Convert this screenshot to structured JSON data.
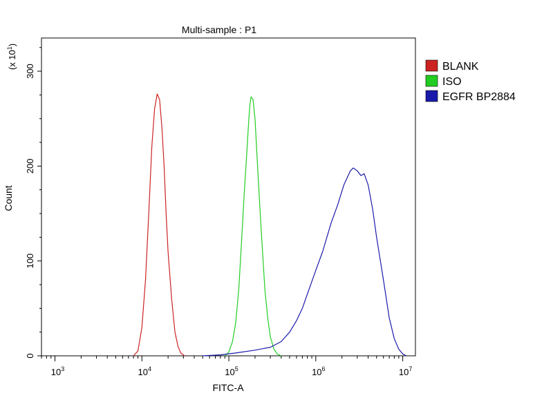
{
  "chart_data": {
    "type": "line",
    "title": "Multi-sample : P1",
    "xlabel": "FITC-A",
    "ylabel": "Count",
    "y_multiplier": "(x 10",
    "y_multiplier_exp": "1",
    "y_multiplier_close": ")",
    "x_scale": "log",
    "xlim": [
      700,
      14000000
    ],
    "ylim": [
      0,
      33.5
    ],
    "x_ticks": [
      {
        "value": 1000,
        "base": "10",
        "exp": "3"
      },
      {
        "value": 10000,
        "base": "10",
        "exp": "4"
      },
      {
        "value": 100000,
        "base": "10",
        "exp": "5"
      },
      {
        "value": 1000000,
        "base": "10",
        "exp": "6"
      },
      {
        "value": 10000000,
        "base": "10",
        "exp": "7"
      }
    ],
    "y_ticks": [
      {
        "value": 0,
        "label": "0"
      },
      {
        "value": 10,
        "label": "100"
      },
      {
        "value": 20,
        "label": "200"
      },
      {
        "value": 30,
        "label": "300"
      }
    ],
    "grid": false,
    "legend_position": "right",
    "series": [
      {
        "name": "BLANK",
        "color": "#cc2222",
        "x": [
          8000,
          9000,
          10000,
          11000,
          12000,
          13000,
          14000,
          15000,
          15500,
          16000,
          17000,
          18000,
          19000,
          20000,
          22000,
          24000,
          26000,
          28000,
          31000
        ],
        "y": [
          0,
          0.5,
          3,
          8,
          15,
          22,
          26,
          27.6,
          27.3,
          27,
          24,
          20,
          15,
          11,
          6,
          2.5,
          1,
          0.3,
          0
        ]
      },
      {
        "name": "ISO",
        "color": "#22cc22",
        "x": [
          90000,
          100000,
          110000,
          120000,
          130000,
          140000,
          150000,
          160000,
          170000,
          175000,
          180000,
          190000,
          200000,
          220000,
          240000,
          260000,
          280000,
          300000,
          330000,
          360000,
          400000
        ],
        "y": [
          0,
          0.4,
          1.5,
          3.5,
          7,
          12,
          17,
          21,
          25,
          26.5,
          27.3,
          27,
          25,
          18,
          12,
          7,
          4,
          2,
          0.7,
          0.2,
          0
        ]
      },
      {
        "name": "EGFR BP2884",
        "color": "#1a1aaa",
        "x": [
          50000,
          80000,
          120000,
          200000,
          300000,
          400000,
          500000,
          600000,
          700000,
          800000,
          1000000,
          1200000,
          1500000,
          1800000,
          2100000,
          2500000,
          2700000,
          3000000,
          3300000,
          3600000,
          4000000,
          4500000,
          5000000,
          6000000,
          7000000,
          8000000,
          9000000,
          10000000,
          11000000
        ],
        "y": [
          0,
          0.1,
          0.3,
          0.6,
          0.9,
          1.5,
          2.5,
          3.7,
          5,
          6.5,
          9,
          11,
          14,
          16,
          18,
          19.5,
          19.8,
          19.5,
          19,
          19.2,
          18,
          15.5,
          12.5,
          8,
          4,
          1.8,
          0.7,
          0.2,
          0
        ]
      }
    ]
  }
}
